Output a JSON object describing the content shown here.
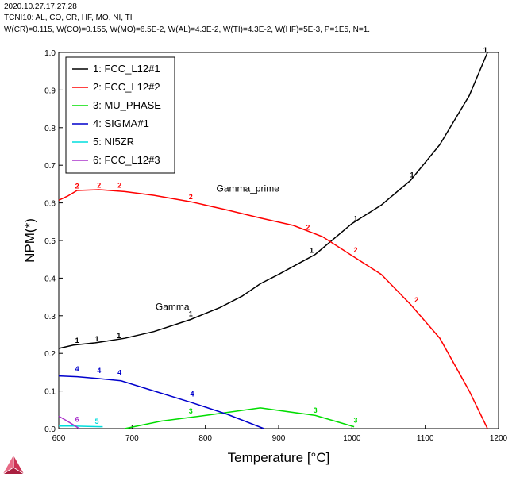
{
  "header": {
    "line1": "2020.10.27.17.27.28",
    "line2": "TCNI10: AL, CO, CR, HF, MO, NI, TI",
    "line3": "W(CR)=0.115, W(CO)=0.155, W(MO)=6.5E-2, W(AL)=4.3E-2, W(TI)=4.3E-2, W(HF)=5E-3, P=1E5, N=1."
  },
  "chart_data": {
    "type": "line",
    "title": "",
    "xlabel": "Temperature [°C]",
    "ylabel": "NPM(*)",
    "xlim": [
      600,
      1200
    ],
    "ylim": [
      0,
      1.0
    ],
    "xticks": [
      600,
      700,
      800,
      900,
      1000,
      1100,
      1200
    ],
    "yticks": [
      0.0,
      0.1,
      0.2,
      0.3,
      0.4,
      0.5,
      0.6,
      0.7,
      0.8,
      0.9,
      1.0
    ],
    "xtick_labels": [
      "600",
      "700",
      "800",
      "900",
      "1000",
      "1100",
      "1200"
    ],
    "ytick_labels": [
      "0.0",
      "0.1",
      "0.2",
      "0.3",
      "0.4",
      "0.5",
      "0.6",
      "0.7",
      "0.8",
      "0.9",
      "1.0"
    ],
    "grid": false,
    "legend_position": "top-left",
    "series": [
      {
        "name": "1: FCC_L12#1",
        "marker": "1",
        "color": "#000000",
        "points": [
          [
            600,
            0.213
          ],
          [
            620,
            0.222
          ],
          [
            650,
            0.228
          ],
          [
            690,
            0.24
          ],
          [
            730,
            0.258
          ],
          [
            780,
            0.29
          ],
          [
            820,
            0.322
          ],
          [
            850,
            0.352
          ],
          [
            875,
            0.385
          ],
          [
            900,
            0.41
          ],
          [
            950,
            0.463
          ],
          [
            1000,
            0.545
          ],
          [
            1040,
            0.594
          ],
          [
            1080,
            0.66
          ],
          [
            1120,
            0.755
          ],
          [
            1160,
            0.885
          ],
          [
            1185,
            1.0
          ]
        ],
        "marker_points": [
          [
            625,
            0.228
          ],
          [
            652,
            0.232
          ],
          [
            682,
            0.24
          ],
          [
            780,
            0.298
          ],
          [
            945,
            0.467
          ],
          [
            1005,
            0.552
          ],
          [
            1082,
            0.668
          ],
          [
            1182,
            1.0
          ]
        ]
      },
      {
        "name": "2: FCC_L12#2",
        "marker": "2",
        "color": "#ff0000",
        "points": [
          [
            600,
            0.607
          ],
          [
            612,
            0.618
          ],
          [
            625,
            0.633
          ],
          [
            655,
            0.635
          ],
          [
            690,
            0.63
          ],
          [
            730,
            0.62
          ],
          [
            780,
            0.603
          ],
          [
            830,
            0.581
          ],
          [
            875,
            0.56
          ],
          [
            920,
            0.54
          ],
          [
            960,
            0.51
          ],
          [
            1000,
            0.46
          ],
          [
            1040,
            0.41
          ],
          [
            1080,
            0.33
          ],
          [
            1120,
            0.24
          ],
          [
            1160,
            0.1
          ],
          [
            1185,
            0.0
          ]
        ],
        "marker_points": [
          [
            625,
            0.638
          ],
          [
            655,
            0.64
          ],
          [
            683,
            0.64
          ],
          [
            780,
            0.61
          ],
          [
            940,
            0.528
          ],
          [
            1005,
            0.468
          ],
          [
            1088,
            0.335
          ]
        ]
      },
      {
        "name": "3: MU_PHASE",
        "marker": "3",
        "color": "#00dd00",
        "points": [
          [
            690,
            0.0
          ],
          [
            740,
            0.02
          ],
          [
            800,
            0.035
          ],
          [
            875,
            0.055
          ],
          [
            950,
            0.035
          ],
          [
            1003,
            0.005
          ]
        ],
        "marker_points": [
          [
            780,
            0.04
          ],
          [
            950,
            0.042
          ],
          [
            1005,
            0.016
          ]
        ]
      },
      {
        "name": "4: SIGMA#1",
        "marker": "4",
        "color": "#0000cc",
        "points": [
          [
            600,
            0.14
          ],
          [
            625,
            0.138
          ],
          [
            655,
            0.133
          ],
          [
            685,
            0.127
          ],
          [
            730,
            0.1
          ],
          [
            780,
            0.07
          ],
          [
            830,
            0.038
          ],
          [
            880,
            0.0
          ]
        ],
        "marker_points": [
          [
            625,
            0.152
          ],
          [
            655,
            0.148
          ],
          [
            683,
            0.142
          ],
          [
            782,
            0.085
          ]
        ]
      },
      {
        "name": "5: NI5ZR",
        "marker": "5",
        "color": "#00dddd",
        "points": [
          [
            600,
            0.007
          ],
          [
            620,
            0.007
          ],
          [
            640,
            0.006
          ],
          [
            660,
            0.005
          ]
        ],
        "marker_points": [
          [
            652,
            0.013
          ]
        ]
      },
      {
        "name": "6: FCC_L12#3",
        "marker": "6",
        "color": "#aa33cc",
        "points": [
          [
            600,
            0.033
          ],
          [
            610,
            0.022
          ],
          [
            620,
            0.01
          ],
          [
            628,
            0.0
          ]
        ],
        "marker_points": [
          [
            625,
            0.018
          ]
        ]
      }
    ],
    "annotations": [
      {
        "text": "Gamma_prime",
        "x": 815,
        "y": 0.63
      },
      {
        "text": "Gamma",
        "x": 732,
        "y": 0.315
      }
    ]
  }
}
